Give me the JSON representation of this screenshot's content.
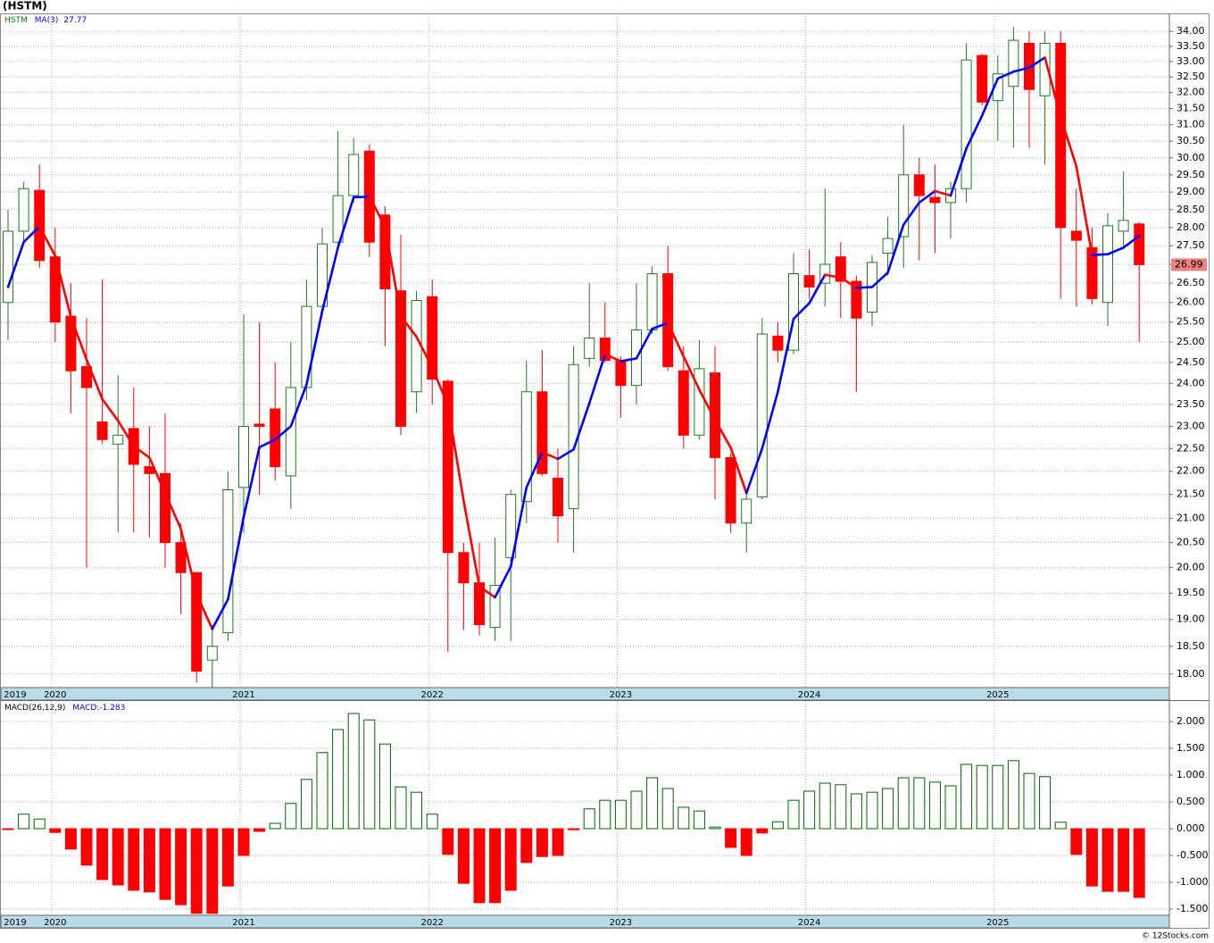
{
  "chart_data": [
    {
      "type": "candlestick",
      "title": "(HSTM)",
      "symbol": "HSTM",
      "symbol_color": "#008000",
      "categories": [
        "2019",
        null,
        null,
        "2020",
        null,
        null,
        null,
        null,
        null,
        null,
        null,
        null,
        null,
        null,
        null,
        "2021",
        null,
        null,
        null,
        null,
        null,
        null,
        null,
        null,
        null,
        null,
        null,
        "2022",
        null,
        null,
        null,
        null,
        null,
        null,
        null,
        null,
        null,
        null,
        null,
        "2023",
        null,
        null,
        null,
        null,
        null,
        null,
        null,
        null,
        null,
        null,
        null,
        "2024",
        null,
        null,
        null,
        null,
        null,
        null,
        null,
        null,
        null,
        null,
        null,
        "2025",
        null,
        null,
        null,
        null,
        null,
        null,
        null,
        null,
        null
      ],
      "open": [
        26.0,
        27.9,
        29.05,
        27.2,
        25.65,
        24.4,
        23.1,
        22.6,
        22.95,
        22.1,
        21.95,
        20.5,
        19.9,
        18.25,
        18.75,
        21.65,
        23.05,
        23.4,
        21.9,
        23.9,
        25.9,
        27.6,
        28.9,
        30.2,
        28.35,
        26.3,
        23.8,
        26.15,
        24.05,
        20.3,
        19.7,
        18.85,
        20.2,
        21.35,
        23.8,
        21.85,
        21.2,
        24.6,
        25.1,
        24.55,
        23.95,
        25.3,
        26.75,
        24.3,
        22.8,
        24.25,
        22.3,
        20.9,
        21.45,
        25.15,
        24.8,
        26.7,
        26.5,
        27.2,
        26.55,
        25.75,
        27.3,
        27.75,
        29.5,
        28.85,
        28.7,
        29.1,
        33.2,
        31.75,
        32.2,
        33.6,
        31.9,
        33.6,
        27.9,
        27.45,
        26.0,
        27.9,
        28.1
      ],
      "high": [
        28.5,
        29.3,
        29.8,
        28.0,
        26.5,
        25.6,
        26.6,
        24.2,
        23.9,
        23.0,
        23.3,
        20.9,
        19.9,
        18.9,
        22.0,
        25.7,
        25.5,
        24.5,
        25.0,
        26.6,
        28.0,
        30.8,
        30.6,
        30.4,
        28.6,
        27.8,
        26.3,
        26.6,
        24.1,
        20.5,
        20.5,
        20.6,
        21.6,
        24.55,
        24.8,
        22.5,
        24.9,
        26.5,
        26.0,
        24.65,
        26.5,
        26.95,
        27.5,
        24.9,
        25.05,
        24.9,
        22.4,
        21.6,
        25.6,
        25.5,
        27.3,
        27.4,
        29.1,
        27.6,
        26.7,
        27.25,
        28.3,
        31.0,
        30.0,
        29.8,
        29.3,
        33.6,
        33.25,
        33.2,
        34.15,
        34.0,
        34.0,
        34.0,
        29.1,
        28.0,
        28.4,
        29.6,
        28.15
      ],
      "low": [
        25.05,
        27.6,
        26.9,
        25.0,
        23.3,
        20.0,
        22.6,
        20.7,
        20.7,
        20.6,
        20.0,
        19.1,
        17.85,
        17.75,
        18.6,
        20.7,
        21.5,
        21.8,
        21.2,
        23.6,
        25.9,
        27.4,
        28.7,
        27.2,
        24.9,
        22.8,
        23.3,
        23.5,
        18.4,
        18.8,
        18.7,
        18.6,
        18.6,
        20.9,
        21.9,
        20.5,
        20.3,
        24.4,
        24.5,
        23.2,
        23.5,
        25.2,
        24.3,
        22.5,
        22.7,
        21.4,
        20.7,
        20.3,
        21.4,
        24.5,
        24.7,
        26.1,
        25.9,
        25.6,
        23.8,
        25.4,
        26.7,
        26.9,
        27.1,
        27.3,
        27.7,
        28.7,
        31.6,
        30.5,
        30.3,
        30.3,
        29.8,
        26.1,
        25.9,
        25.95,
        25.4,
        27.4,
        25.0
      ],
      "close": [
        27.9,
        29.1,
        27.1,
        25.5,
        24.3,
        23.9,
        22.7,
        22.8,
        22.15,
        21.95,
        20.5,
        19.9,
        18.05,
        18.5,
        21.6,
        23.0,
        23.0,
        22.1,
        23.9,
        25.9,
        27.55,
        28.9,
        30.1,
        27.6,
        26.35,
        23.0,
        26.05,
        24.1,
        20.3,
        19.7,
        18.9,
        19.65,
        21.5,
        23.8,
        21.95,
        21.05,
        24.45,
        25.1,
        24.55,
        23.95,
        25.3,
        26.75,
        24.4,
        22.8,
        24.35,
        22.3,
        20.9,
        21.4,
        25.2,
        24.8,
        26.75,
        26.4,
        27.0,
        26.55,
        25.6,
        27.05,
        27.7,
        29.5,
        28.9,
        28.7,
        29.1,
        33.05,
        31.7,
        32.6,
        33.7,
        32.1,
        33.6,
        28.0,
        27.65,
        26.1,
        28.05,
        28.2,
        26.99
      ],
      "up_color": "#1f7a1f",
      "down_color": "#ff0000",
      "last_color": "#f08080",
      "ma": {
        "name": "MA(3)",
        "up_color": "#0000ff",
        "down_color": "#ff0000",
        "values": [
          26.4,
          27.6,
          28.03,
          27.23,
          25.63,
          24.57,
          23.63,
          23.13,
          22.55,
          22.3,
          21.53,
          20.78,
          19.48,
          18.82,
          19.38,
          21.03,
          22.53,
          22.7,
          23.0,
          23.97,
          25.78,
          27.45,
          28.85,
          28.87,
          28.02,
          25.65,
          25.13,
          24.38,
          23.48,
          21.37,
          19.63,
          19.42,
          20.02,
          21.65,
          22.42,
          22.27,
          22.48,
          23.53,
          24.7,
          24.53,
          24.6,
          25.33,
          25.48,
          24.65,
          23.85,
          23.15,
          22.52,
          21.53,
          22.5,
          23.8,
          25.58,
          25.98,
          26.72,
          26.65,
          26.38,
          26.4,
          26.78,
          28.08,
          28.7,
          29.03,
          28.9,
          30.28,
          31.28,
          32.45,
          32.67,
          32.8,
          33.13,
          31.23,
          29.75,
          27.25,
          27.27,
          27.45,
          27.77
        ]
      },
      "log": true,
      "grid": true,
      "ylim": [
        17.76,
        34.61
      ],
      "yticks": [
        {
          "value": 18,
          "label": "18.00"
        },
        {
          "value": 18.5,
          "label": "18.50"
        },
        {
          "value": 19,
          "label": "19.00"
        },
        {
          "value": 19.5,
          "label": "19.50"
        },
        {
          "value": 20,
          "label": "20.00"
        },
        {
          "value": 20.5,
          "label": "20.50"
        },
        {
          "value": 21,
          "label": "21.00"
        },
        {
          "value": 21.5,
          "label": "21.50"
        },
        {
          "value": 22,
          "label": "22.00"
        },
        {
          "value": 22.5,
          "label": "22.50"
        },
        {
          "value": 23,
          "label": "23.00"
        },
        {
          "value": 23.5,
          "label": "23.50"
        },
        {
          "value": 24,
          "label": "24.00"
        },
        {
          "value": 24.5,
          "label": "24.50"
        },
        {
          "value": 25,
          "label": "25.00"
        },
        {
          "value": 25.5,
          "label": "25.50"
        },
        {
          "value": 26,
          "label": "26.00"
        },
        {
          "value": 26.5,
          "label": "26.50"
        },
        {
          "value": 27,
          "label": "27.00"
        },
        {
          "value": 27.5,
          "label": "27.50"
        },
        {
          "value": 28,
          "label": "28.00"
        },
        {
          "value": 28.5,
          "label": "28.50"
        },
        {
          "value": 29,
          "label": "29.00"
        },
        {
          "value": 29.5,
          "label": "29.50"
        },
        {
          "value": 30,
          "label": "30.00"
        },
        {
          "value": 30.5,
          "label": "30.50"
        },
        {
          "value": 31,
          "label": "31.00"
        },
        {
          "value": 31.5,
          "label": "31.50"
        },
        {
          "value": 32,
          "label": "32.00"
        },
        {
          "value": 32.5,
          "label": "32.50"
        },
        {
          "value": 33,
          "label": "33.00"
        },
        {
          "value": 33.5,
          "label": "33.50"
        },
        {
          "value": 34,
          "label": "34.00"
        }
      ]
    },
    {
      "type": "bar",
      "title": "MACD(26,12,9)",
      "value_name": "MACD:",
      "categories": [
        "2019",
        null,
        null,
        "2020",
        null,
        null,
        null,
        null,
        null,
        null,
        null,
        null,
        null,
        null,
        null,
        "2021",
        null,
        null,
        null,
        null,
        null,
        null,
        null,
        null,
        null,
        null,
        null,
        "2022",
        null,
        null,
        null,
        null,
        null,
        null,
        null,
        null,
        null,
        null,
        null,
        "2023",
        null,
        null,
        null,
        null,
        null,
        null,
        null,
        null,
        null,
        null,
        null,
        "2024",
        null,
        null,
        null,
        null,
        null,
        null,
        null,
        null,
        null,
        null,
        null,
        "2025",
        null,
        null,
        null,
        null,
        null,
        null,
        null,
        null,
        null
      ],
      "values": [
        -0.01,
        0.27,
        0.18,
        -0.07,
        -0.38,
        -0.68,
        -0.95,
        -1.05,
        -1.15,
        -1.18,
        -1.32,
        -1.42,
        -1.58,
        -1.58,
        -1.07,
        -0.5,
        -0.05,
        0.1,
        0.47,
        0.92,
        1.42,
        1.85,
        2.15,
        2.03,
        1.58,
        0.78,
        0.68,
        0.27,
        -0.48,
        -1.02,
        -1.38,
        -1.38,
        -1.15,
        -0.63,
        -0.52,
        -0.5,
        -0.02,
        0.37,
        0.53,
        0.53,
        0.7,
        0.95,
        0.75,
        0.4,
        0.33,
        0.03,
        -0.35,
        -0.5,
        -0.08,
        0.13,
        0.53,
        0.7,
        0.85,
        0.82,
        0.65,
        0.68,
        0.75,
        0.95,
        0.95,
        0.87,
        0.8,
        1.2,
        1.18,
        1.18,
        1.27,
        1.03,
        0.97,
        0.12,
        -0.48,
        -1.07,
        -1.17,
        -1.17,
        -1.283
      ],
      "up_color": "#006400",
      "down_color": "#ff0000",
      "label_color": "#0000cc",
      "grid": true,
      "ylim": [
        -1.617,
        2.383
      ],
      "yticks": [
        {
          "value": -1.5,
          "label": "-1.500"
        },
        {
          "value": -1,
          "label": "-1.000"
        },
        {
          "value": -0.5,
          "label": "-0.500"
        },
        {
          "value": 0,
          "label": "0.000"
        },
        {
          "value": 0.5,
          "label": "0.500"
        },
        {
          "value": 1,
          "label": "1.000"
        },
        {
          "value": 1.5,
          "label": "1.500"
        },
        {
          "value": 2,
          "label": "2.000"
        }
      ]
    }
  ],
  "footer": "© 12Stocks.com"
}
